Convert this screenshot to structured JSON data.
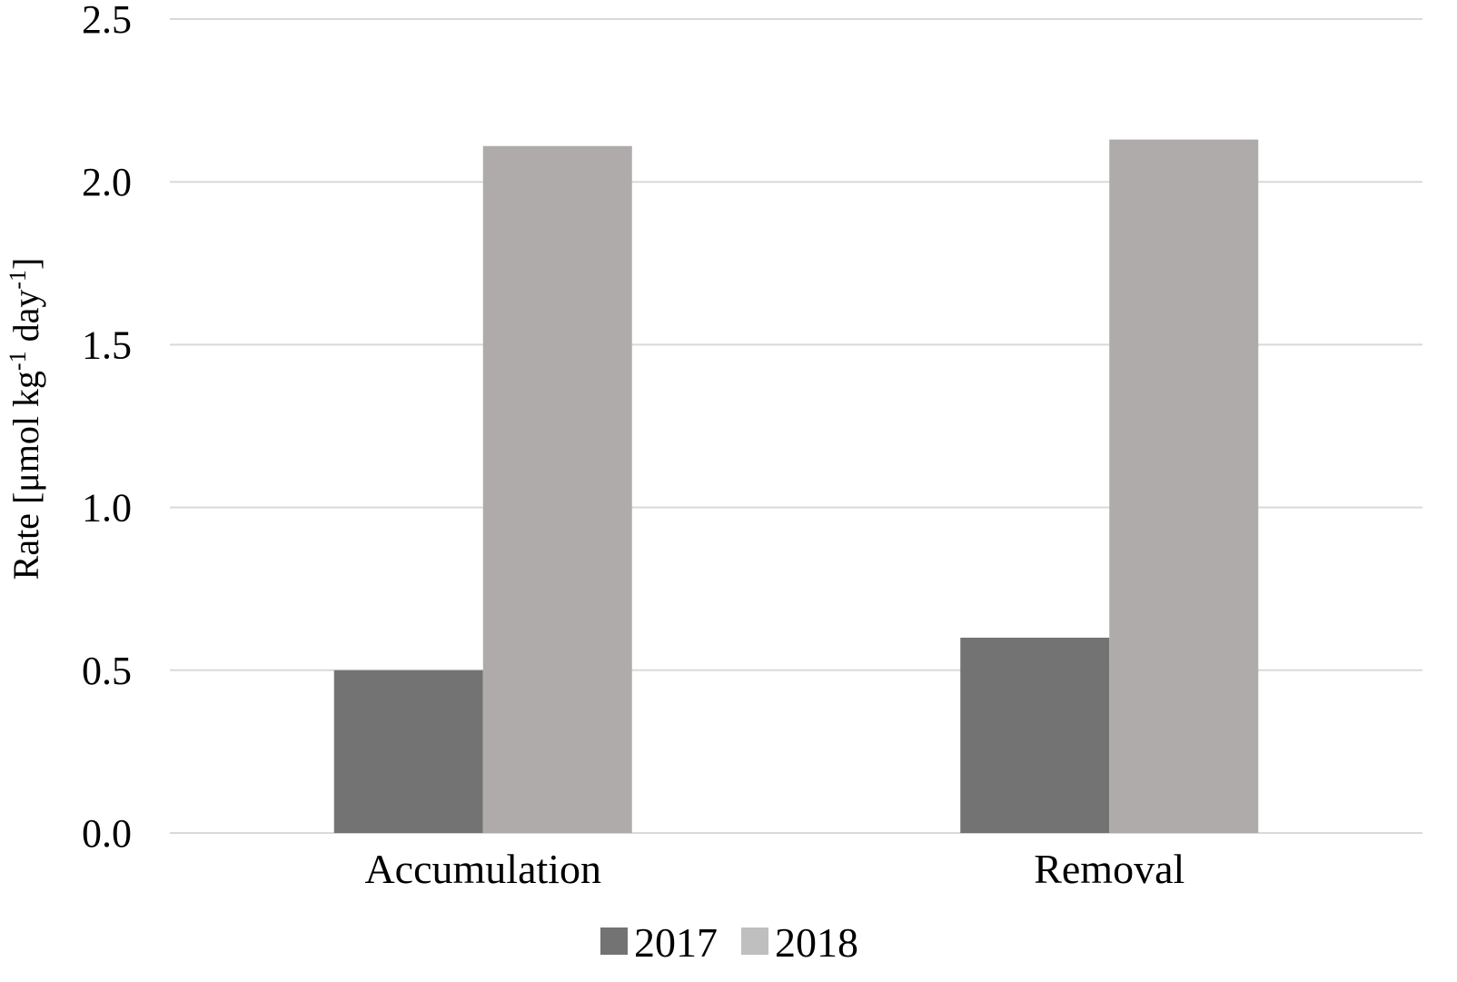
{
  "chart_data": {
    "type": "bar",
    "categories": [
      "Accumulation",
      "Removal"
    ],
    "series": [
      {
        "name": "2017",
        "values": [
          0.5,
          0.6
        ],
        "color": "#737373"
      },
      {
        "name": "2018",
        "values": [
          2.11,
          2.13
        ],
        "color": "#aeabaa"
      }
    ],
    "xlabel": "",
    "ylabel_parts": [
      "Rate [μmol kg",
      "-1",
      " day",
      "-1",
      "]"
    ],
    "ylim": [
      0,
      2.5
    ],
    "yticks": [
      "0.0",
      "0.5",
      "1.0",
      "1.5",
      "2.0",
      "2.5"
    ],
    "grid": true,
    "legend": "bottom",
    "legend_swatch_colors": [
      "#737373",
      "#bfbfbf"
    ],
    "grid_color": "#d9d9d9"
  }
}
